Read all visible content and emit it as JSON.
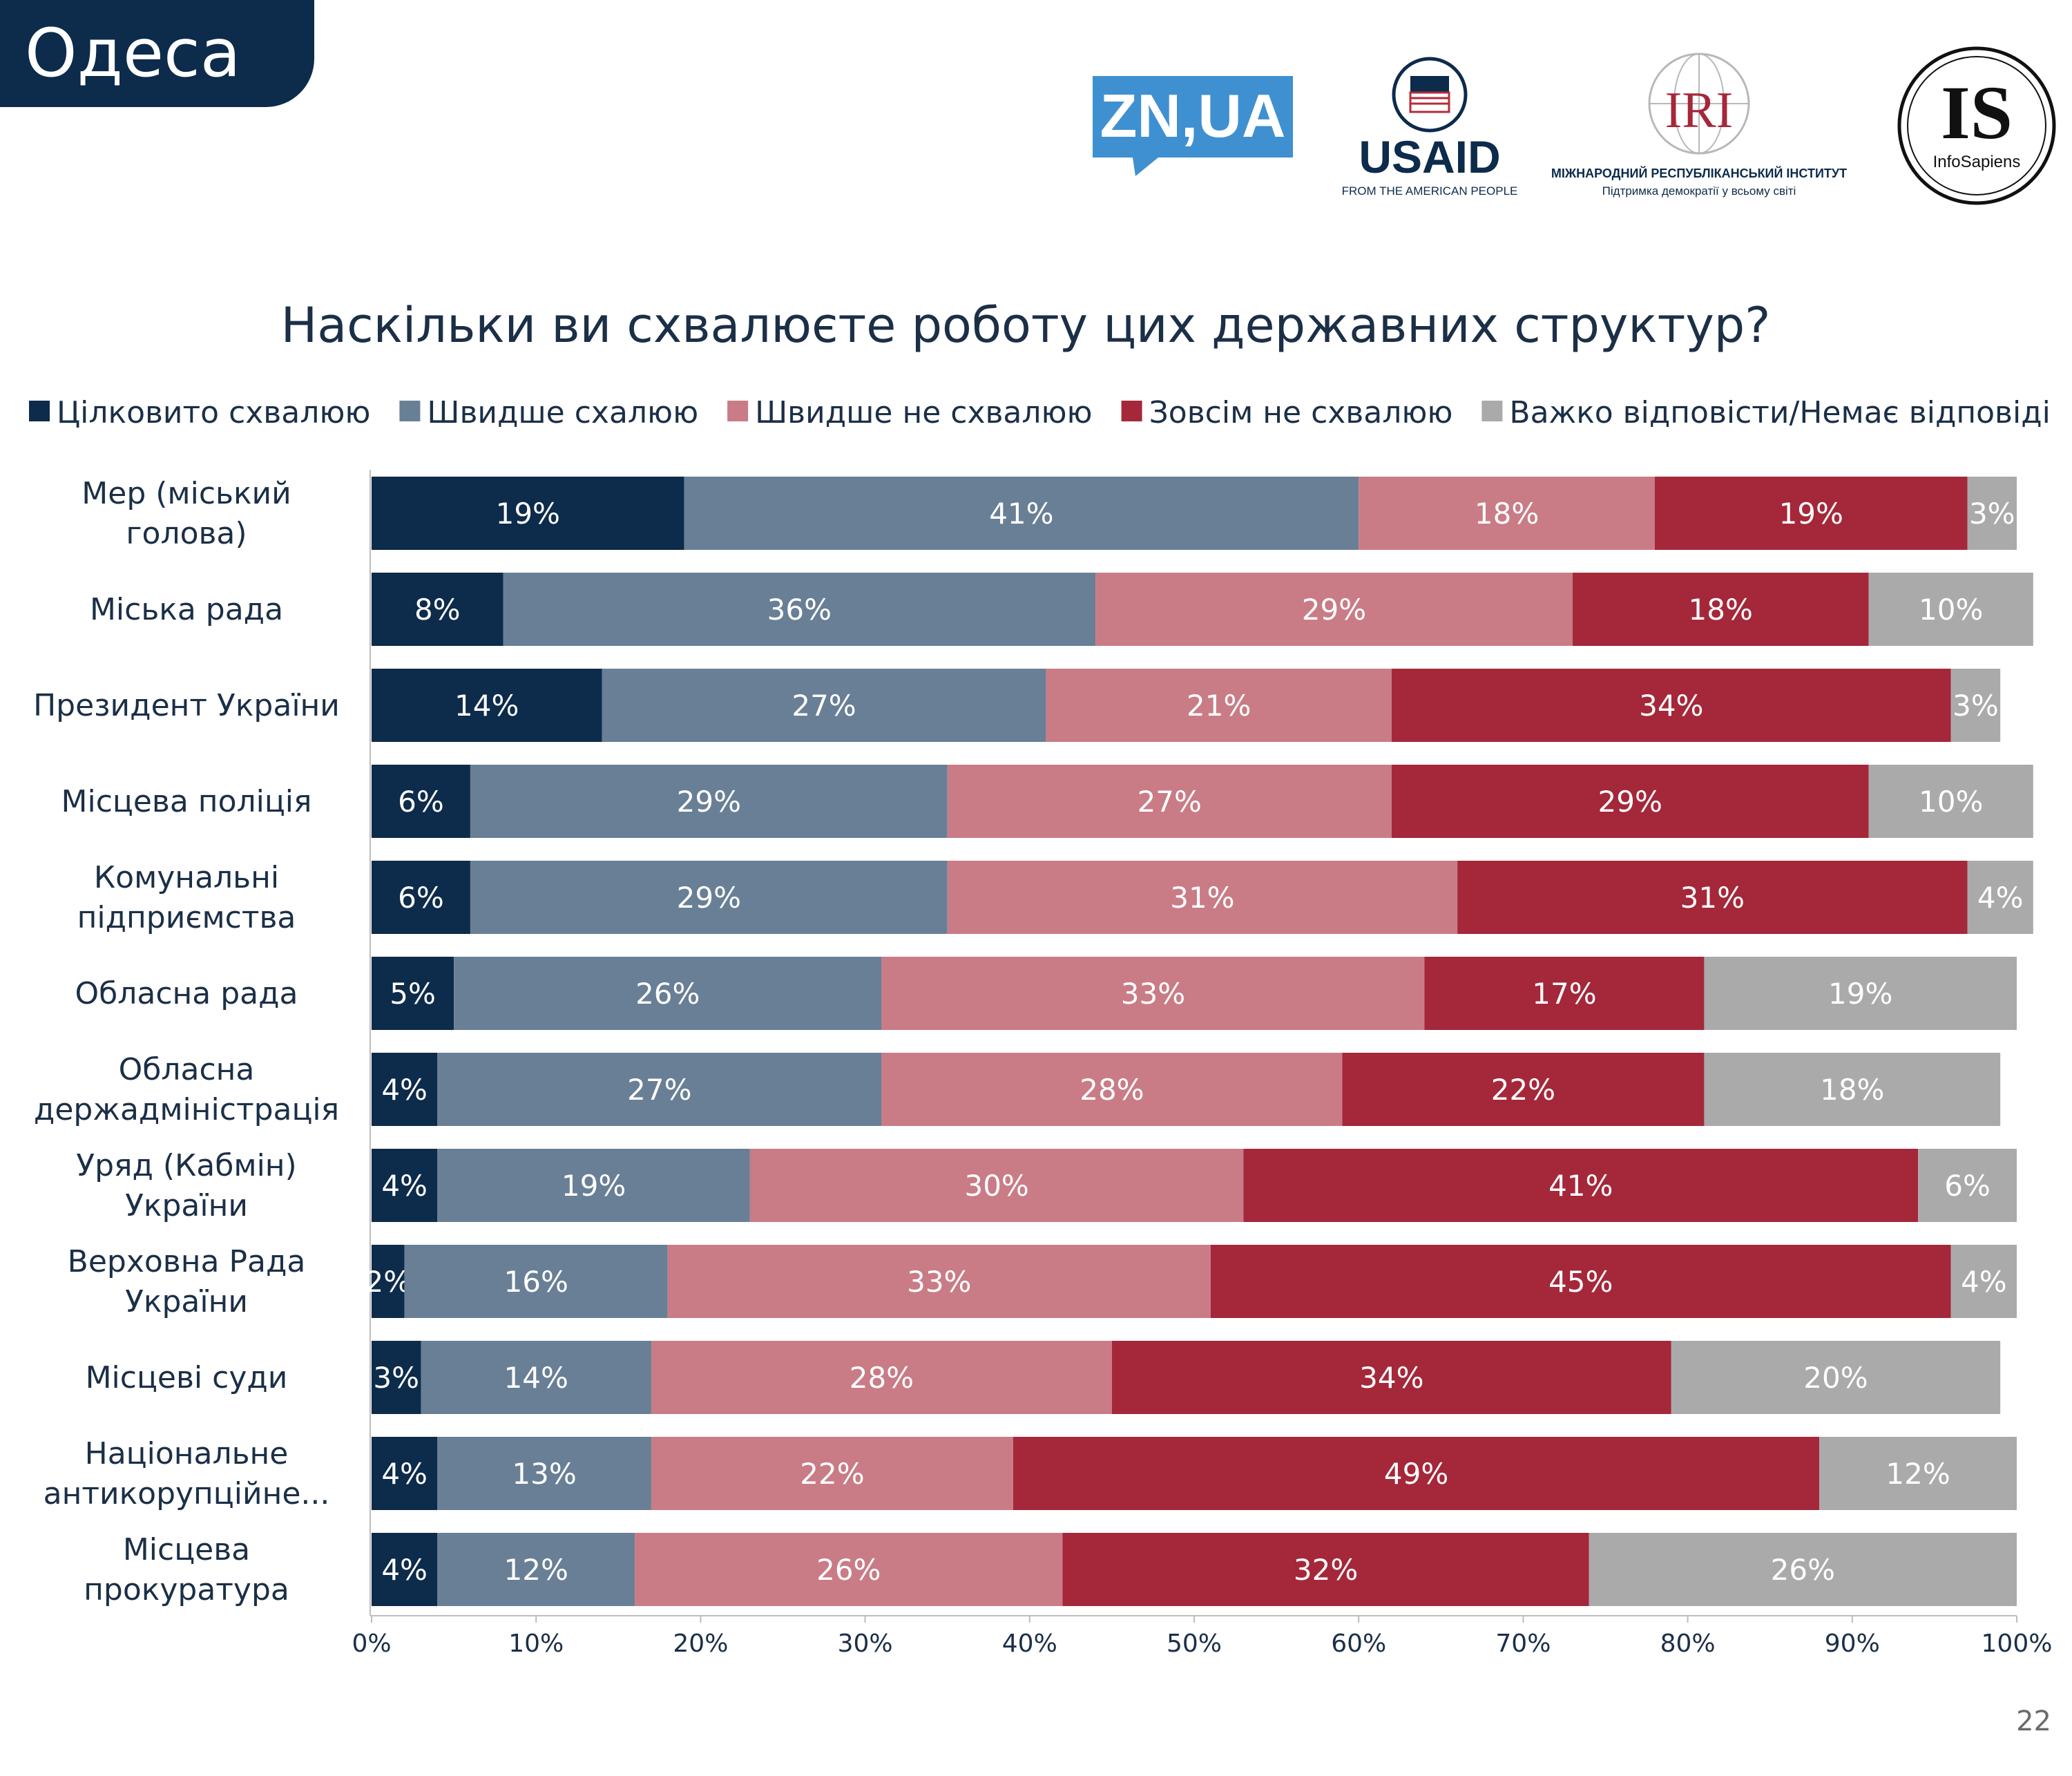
{
  "region": "Одеса",
  "page_number": "22",
  "logos": {
    "zn": "ZN,UA",
    "usaid": "USAID",
    "usaid_tagline": "FROM THE AMERICAN PEOPLE",
    "iri": "IRI",
    "iri_name": "МІЖНАРОДНИЙ РЕСПУБЛІКАНСЬКИЙ ІНСТИТУТ",
    "iri_tagline": "Підтримка демократії у всьому світі",
    "infosapiens": "IS",
    "infosapiens_name": "InfoSapiens"
  },
  "chart_data": {
    "type": "bar",
    "orientation": "horizontal",
    "stacked": true,
    "title": "Наскільки ви схвалюєте роботу цих державних структур?",
    "legend_position": "top",
    "xlim": [
      0,
      100
    ],
    "x_ticks": [
      "0%",
      "10%",
      "20%",
      "30%",
      "40%",
      "50%",
      "60%",
      "70%",
      "80%",
      "90%",
      "100%"
    ],
    "categories": [
      [
        "Мер (міський",
        "голова)"
      ],
      [
        "Міська рада"
      ],
      [
        "Президент України"
      ],
      [
        "Місцева поліція"
      ],
      [
        "Комунальні",
        "підприємства"
      ],
      [
        "Обласна рада"
      ],
      [
        "Обласна",
        "держадміністрація"
      ],
      [
        "Уряд (Кабмін)",
        "України"
      ],
      [
        "Верховна Рада",
        "України"
      ],
      [
        "Місцеві суди"
      ],
      [
        "Національне",
        "антикорупційне..."
      ],
      [
        "Місцева",
        "прокуратура"
      ]
    ],
    "series": [
      {
        "name": "Цілковито схвалюю",
        "color": "#0d2b4b",
        "values": [
          19,
          8,
          14,
          6,
          6,
          5,
          4,
          4,
          2,
          3,
          4,
          4
        ]
      },
      {
        "name": "Швидше схалюю",
        "color": "#687f96",
        "values": [
          41,
          36,
          27,
          29,
          29,
          26,
          27,
          19,
          16,
          14,
          13,
          12
        ]
      },
      {
        "name": "Швидше не схвалюю",
        "color": "#c97c86",
        "values": [
          18,
          29,
          21,
          27,
          31,
          33,
          28,
          30,
          33,
          28,
          22,
          26
        ]
      },
      {
        "name": "Зовсім не схвалюю",
        "color": "#a5273a",
        "values": [
          19,
          18,
          34,
          29,
          31,
          17,
          22,
          41,
          45,
          34,
          49,
          32
        ]
      },
      {
        "name": "Важко відповісти/Немає відповіді",
        "color": "#aaaaaa",
        "values": [
          3,
          10,
          3,
          10,
          4,
          19,
          18,
          6,
          4,
          20,
          12,
          26
        ]
      }
    ]
  }
}
